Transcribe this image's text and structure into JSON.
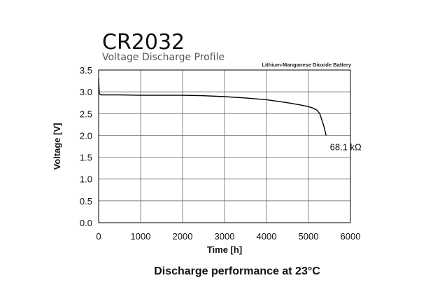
{
  "chart_data": {
    "type": "line",
    "title": "CR2032",
    "subtitle": "Voltage Discharge Profile",
    "chemistry": "Lithium-Manganese Dioxide Battery",
    "xlabel": "Time [h]",
    "ylabel": "Voltage [V]",
    "xlim": [
      0,
      6000
    ],
    "ylim": [
      0,
      3.5
    ],
    "x_ticks": [
      0,
      1000,
      2000,
      3000,
      4000,
      5000,
      6000
    ],
    "y_ticks": [
      "0.0",
      "0.5",
      "1.0",
      "1.5",
      "2.0",
      "2.5",
      "3.0",
      "3.5"
    ],
    "grid": true,
    "series": [
      {
        "name": "68.1 kΩ",
        "x": [
          0,
          15,
          50,
          100,
          500,
          1000,
          1500,
          2000,
          2500,
          3000,
          3500,
          4000,
          4500,
          4800,
          5000,
          5100,
          5200,
          5270,
          5320,
          5370,
          5420
        ],
        "y": [
          3.3,
          2.96,
          2.93,
          2.93,
          2.93,
          2.92,
          2.92,
          2.92,
          2.91,
          2.89,
          2.86,
          2.82,
          2.75,
          2.7,
          2.66,
          2.63,
          2.58,
          2.5,
          2.35,
          2.2,
          2.0
        ]
      }
    ],
    "caption": "Discharge performance at 23°C",
    "line_color": "#000000",
    "grid_color": "#555555"
  }
}
